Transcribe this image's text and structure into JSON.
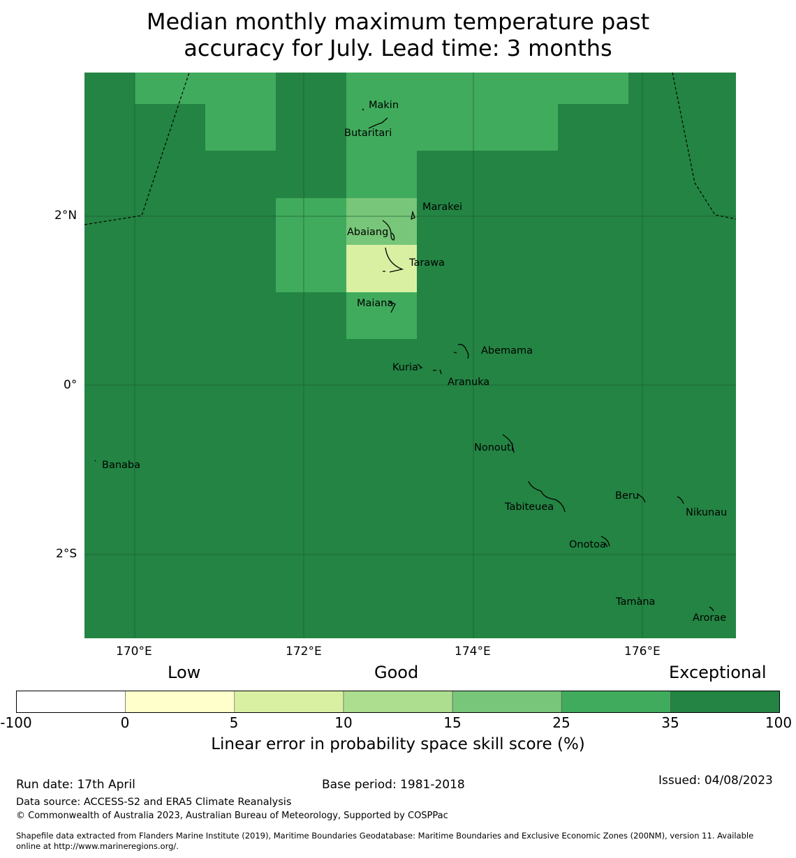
{
  "title": {
    "line1": "Median monthly maximum temperature past",
    "line2": "accuracy for July. Lead time: 3 months"
  },
  "map": {
    "lon_labels": [
      "170°E",
      "172°E",
      "174°E",
      "176°E"
    ],
    "lat_labels": [
      "2°N",
      "0°",
      "2°S"
    ],
    "places": [
      "Makin",
      "Butaritari",
      "Marakei",
      "Abaiang",
      "Tarawa",
      "Maiana",
      "Abemama",
      "Kuria",
      "Aranuka",
      "Nonouti",
      "Banaba",
      "Beru",
      "Nikunau",
      "Tabiteuea",
      "Onotoa",
      "Tamana",
      "Arorae"
    ]
  },
  "legend": {
    "categories": [
      "Low",
      "Good",
      "Exceptional"
    ],
    "ticks": [
      "-100",
      "0",
      "5",
      "10",
      "15",
      "25",
      "35",
      "100"
    ],
    "colors": [
      "#ffffff",
      "#ffffcc",
      "#d9f0a3",
      "#addd8e",
      "#78c679",
      "#41ab5d",
      "#238443"
    ],
    "title": "Linear error in probability space skill score (%)"
  },
  "footer": {
    "run_date": "Run date: 17th April",
    "base_period": "Base period: 1981-2018",
    "issued": "Issued: 04/08/2023",
    "data_source": "Data source: ACCESS-S2 and ERA5 Climate Reanalysis",
    "copyright": "© Commonwealth of Australia 2023, Australian Bureau of Meteorology, Supported by COSPPac",
    "shapefile_line1": "Shapefile data extracted from Flanders Marine Institute (2019), Maritime Boundaries Geodatabase: Maritime Boundaries and Exclusive Economic Zones (200NM), version 11. Available",
    "shapefile_line2": "online at http://www.marineregions.org/."
  }
}
